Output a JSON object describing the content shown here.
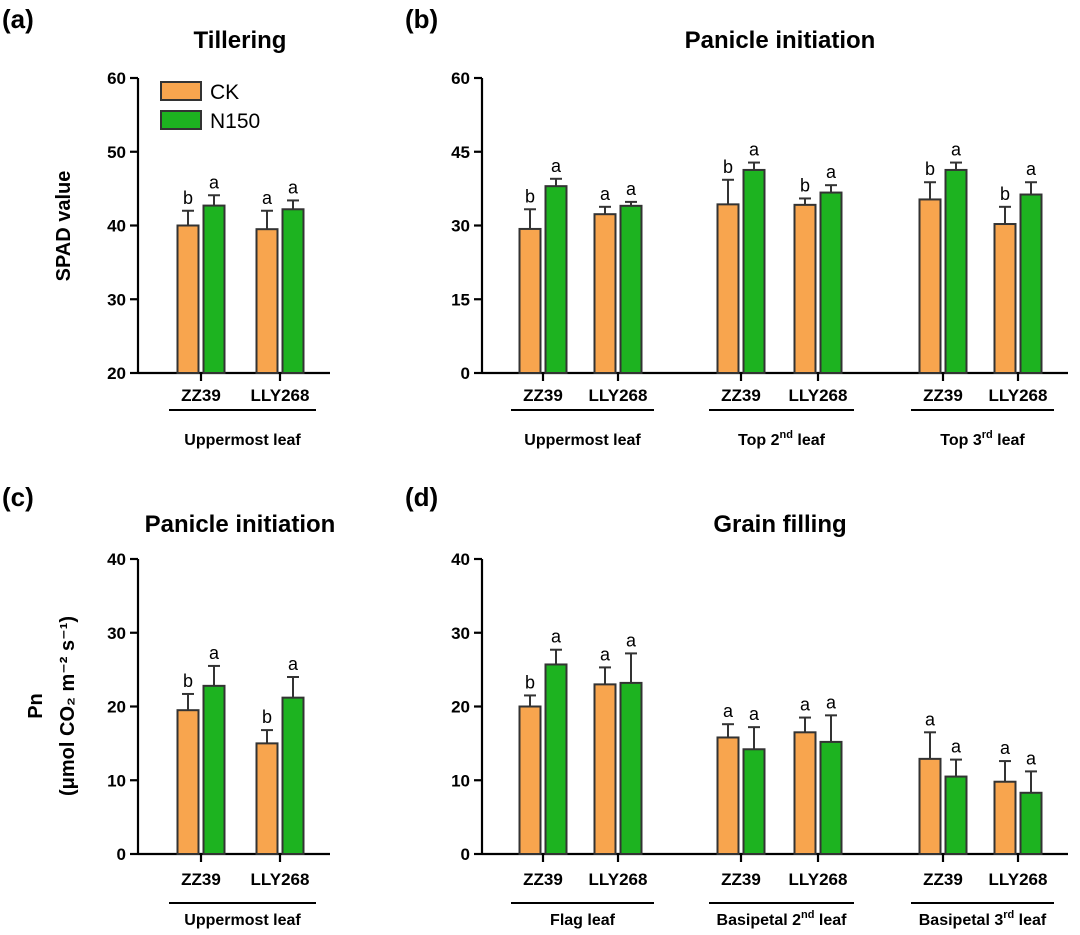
{
  "legend": {
    "items": [
      {
        "label": "CK",
        "color": "#F8A54E"
      },
      {
        "label": "N150",
        "color": "#1DB320"
      }
    ]
  },
  "chart_data": [
    {
      "panel": "(a)",
      "type": "bar",
      "title": "Tillering",
      "ylabel": "SPAD value",
      "ylim": [
        20,
        60
      ],
      "yticks": [
        "20",
        "30",
        "40",
        "50",
        "60"
      ],
      "groups": [
        {
          "label": "Uppermost leaf",
          "categories": [
            "ZZ39",
            "LLY268"
          ]
        }
      ],
      "series": [
        {
          "name": "CK",
          "values": [
            40.0,
            39.5
          ],
          "errors": [
            2.0,
            2.5
          ],
          "letters": [
            "b",
            "a"
          ]
        },
        {
          "name": "N150",
          "values": [
            42.7,
            42.2
          ],
          "errors": [
            1.4,
            1.2
          ],
          "letters": [
            "a",
            "a"
          ]
        }
      ]
    },
    {
      "panel": "(b)",
      "type": "bar",
      "title": "Panicle initiation",
      "ylabel": "",
      "ylim": [
        0,
        60
      ],
      "yticks": [
        "0",
        "15",
        "30",
        "45",
        "60"
      ],
      "groups": [
        {
          "label": "Uppermost leaf",
          "label_main": "Uppermost leaf",
          "label_sup": "",
          "label_suffix": "",
          "categories": [
            "ZZ39",
            "LLY268"
          ]
        },
        {
          "label": "Top 2nd leaf",
          "label_main": "Top 2",
          "label_sup": "nd",
          "label_suffix": " leaf",
          "categories": [
            "ZZ39",
            "LLY268"
          ]
        },
        {
          "label": "Top 3rd leaf",
          "label_main": "Top 3",
          "label_sup": "rd",
          "label_suffix": " leaf",
          "categories": [
            "ZZ39",
            "LLY268"
          ]
        }
      ],
      "series": [
        {
          "name": "CK",
          "values": [
            29.3,
            32.3,
            34.3,
            34.2,
            35.3,
            30.3
          ],
          "errors": [
            4.0,
            1.5,
            5.0,
            1.3,
            3.5,
            3.5
          ],
          "letters": [
            "b",
            "a",
            "b",
            "b",
            "b",
            "b"
          ]
        },
        {
          "name": "N150",
          "values": [
            38.0,
            34.0,
            41.3,
            36.7,
            41.3,
            36.3
          ],
          "errors": [
            1.5,
            0.8,
            1.5,
            1.5,
            1.5,
            2.5
          ],
          "letters": [
            "a",
            "a",
            "a",
            "a",
            "a",
            "a"
          ]
        }
      ]
    },
    {
      "panel": "(c)",
      "type": "bar",
      "title": "Panicle initiation",
      "ylabel_line1": "Pn",
      "ylabel_line2": "(μmol CO₂ m⁻² s⁻¹)",
      "ylim": [
        0,
        40
      ],
      "yticks": [
        "0",
        "10",
        "20",
        "30",
        "40"
      ],
      "groups": [
        {
          "label": "Uppermost leaf",
          "categories": [
            "ZZ39",
            "LLY268"
          ]
        }
      ],
      "series": [
        {
          "name": "CK",
          "values": [
            19.5,
            15.0
          ],
          "errors": [
            2.2,
            1.8
          ],
          "letters": [
            "b",
            "b"
          ]
        },
        {
          "name": "N150",
          "values": [
            22.8,
            21.2
          ],
          "errors": [
            2.7,
            2.8
          ],
          "letters": [
            "a",
            "a"
          ]
        }
      ]
    },
    {
      "panel": "(d)",
      "type": "bar",
      "title": "Grain filling",
      "ylabel": "",
      "ylim": [
        0,
        40
      ],
      "yticks": [
        "0",
        "10",
        "20",
        "30",
        "40"
      ],
      "groups": [
        {
          "label": "Flag leaf",
          "label_main": "Flag leaf",
          "label_sup": "",
          "label_suffix": "",
          "categories": [
            "ZZ39",
            "LLY268"
          ]
        },
        {
          "label": "Basipetal 2nd leaf",
          "label_main": "Basipetal 2",
          "label_sup": "nd",
          "label_suffix": " leaf",
          "categories": [
            "ZZ39",
            "LLY268"
          ]
        },
        {
          "label": "Basipetal 3rd leaf",
          "label_main": "Basipetal 3",
          "label_sup": "rd",
          "label_suffix": " leaf",
          "categories": [
            "ZZ39",
            "LLY268"
          ]
        }
      ],
      "series": [
        {
          "name": "CK",
          "values": [
            20.0,
            23.0,
            15.8,
            16.5,
            12.9,
            9.8
          ],
          "errors": [
            1.5,
            2.3,
            1.8,
            2.0,
            3.6,
            2.8
          ],
          "letters": [
            "b",
            "a",
            "a",
            "a",
            "a",
            "a"
          ]
        },
        {
          "name": "N150",
          "values": [
            25.7,
            23.2,
            14.2,
            15.2,
            10.5,
            8.3
          ],
          "errors": [
            2.0,
            4.0,
            3.0,
            3.6,
            2.3,
            2.9
          ],
          "letters": [
            "a",
            "a",
            "a",
            "a",
            "a",
            "a"
          ]
        }
      ]
    }
  ]
}
